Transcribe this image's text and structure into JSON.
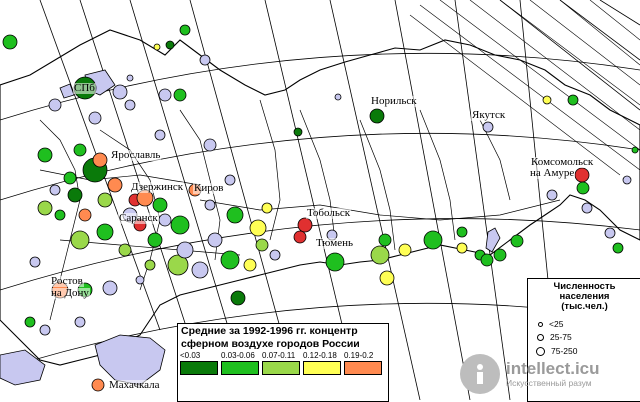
{
  "city_labels": {
    "spb": "СПб",
    "yaroslavl": "Ярославль",
    "dzerzhinsk": "Дзержинск",
    "kirov": "Киров",
    "saransk": "Саранск",
    "norilsk": "Норильск",
    "yakutsk": "Якутск",
    "komsomolsk": "Комсомольск",
    "komsomolsk2": "на Амуре",
    "tobolsk": "Тобольск",
    "tyumen": "Тюмень",
    "rostov": "Ростов",
    "rostov2": "на Дону",
    "makhachkala": "Махачкала"
  },
  "legend": {
    "title_line1": "Средние за 1992-1996 гг. концентр",
    "title_line2": "сферном воздухе городов России",
    "classes": [
      {
        "label": "<0.03",
        "color": "#0a7a0a"
      },
      {
        "label": "0.03-0.06",
        "color": "#1fbf1f"
      },
      {
        "label": "0.07-0.11",
        "color": "#9ad84a"
      },
      {
        "label": "0.12-0.18",
        "color": "#ffff55"
      },
      {
        "label": "0.19-0.2",
        "color": "#ff8a50"
      }
    ]
  },
  "size_legend": {
    "title_line1": "Численность",
    "title_line2": "населения",
    "title_line3": "(тыс.чел.)",
    "rows": [
      "<25",
      "25-75",
      "75-250"
    ]
  },
  "watermark": {
    "name": "intellect.icu",
    "subtitle": "Искусственный разум"
  },
  "colors": {
    "water": "#c8c8f0",
    "land": "#ffffff",
    "boundary": "#000000",
    "dark_green": "#0a7a0a",
    "green": "#1fbf1f",
    "light_green": "#9ad84a",
    "yellow": "#ffff55",
    "orange": "#ff8a50",
    "red": "#e03030",
    "lavender": "#c8c8f0"
  }
}
